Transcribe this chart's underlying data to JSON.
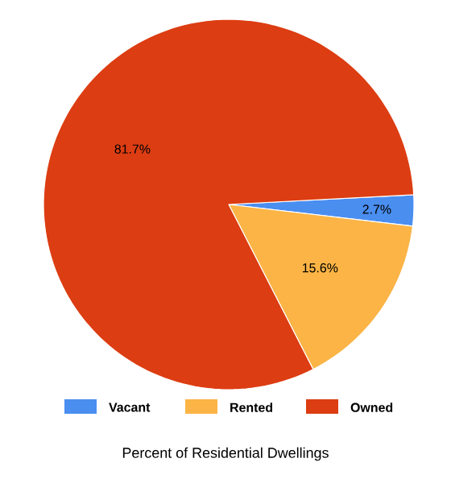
{
  "chart_data": {
    "type": "pie",
    "title": "Percent of Residential Dwellings",
    "categories": [
      "Vacant",
      "Rented",
      "Owned"
    ],
    "values": [
      2.7,
      15.6,
      81.7
    ],
    "colors": [
      "#4a8ef0",
      "#fbb445",
      "#dc3d12"
    ],
    "value_labels": [
      "2.7%",
      "15.6%",
      "81.7%"
    ],
    "legend": "bottom"
  }
}
